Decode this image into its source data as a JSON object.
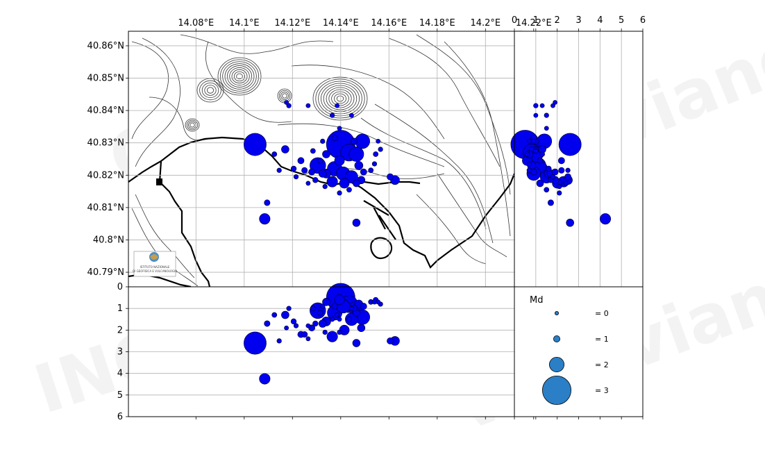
{
  "chart_data": [
    {
      "type": "scatter",
      "panel": "map",
      "xlabel": "",
      "ylabel": "",
      "xlim": [
        14.052,
        14.212
      ],
      "ylim": [
        40.7855,
        40.8645
      ],
      "x_ticks": [
        14.08,
        14.1,
        14.12,
        14.14,
        14.16,
        14.18,
        14.2,
        14.22
      ],
      "x_tick_labels": [
        "14.08°E",
        "14.1°E",
        "14.12°E",
        "14.14°E",
        "14.16°E",
        "14.18°E",
        "14.2°E",
        "14.22°E"
      ],
      "y_ticks": [
        40.79,
        40.8,
        40.81,
        40.82,
        40.83,
        40.84,
        40.85,
        40.86
      ],
      "y_tick_labels": [
        "40.79°N",
        "40.8°N",
        "40.81°N",
        "40.82°N",
        "40.83°N",
        "40.84°N",
        "40.85°N",
        "40.86°N"
      ],
      "grid": true,
      "marker_color": "#0000ee",
      "points": [
        {
          "lon": 14.14,
          "lat": 40.8295,
          "md": 3.0
        },
        {
          "lon": 14.1435,
          "lat": 40.827,
          "md": 2.2
        },
        {
          "lon": 14.1465,
          "lat": 40.8265,
          "md": 2.0
        },
        {
          "lon": 14.1305,
          "lat": 40.823,
          "md": 2.1
        },
        {
          "lon": 14.1375,
          "lat": 40.822,
          "md": 2.0
        },
        {
          "lon": 14.141,
          "lat": 40.8205,
          "md": 1.9
        },
        {
          "lon": 14.1445,
          "lat": 40.8195,
          "md": 1.8
        },
        {
          "lon": 14.1365,
          "lat": 40.818,
          "md": 1.6
        },
        {
          "lon": 14.134,
          "lat": 40.8205,
          "md": 1.4
        },
        {
          "lon": 14.1415,
          "lat": 40.8175,
          "md": 1.5
        },
        {
          "lon": 14.1325,
          "lat": 40.8205,
          "md": 1.2
        },
        {
          "lon": 14.128,
          "lat": 40.821,
          "md": 1.0
        },
        {
          "lon": 14.125,
          "lat": 40.8215,
          "md": 0.9
        },
        {
          "lon": 14.1235,
          "lat": 40.8245,
          "md": 1.0
        },
        {
          "lon": 14.1205,
          "lat": 40.822,
          "md": 0.8
        },
        {
          "lon": 14.134,
          "lat": 40.8265,
          "md": 1.2
        },
        {
          "lon": 14.1395,
          "lat": 40.8245,
          "md": 1.5
        },
        {
          "lon": 14.1475,
          "lat": 40.823,
          "md": 1.3
        },
        {
          "lon": 14.1495,
          "lat": 40.821,
          "md": 1.0
        },
        {
          "lon": 14.1525,
          "lat": 40.8215,
          "md": 0.7
        },
        {
          "lon": 14.154,
          "lat": 40.8235,
          "md": 0.6
        },
        {
          "lon": 14.1545,
          "lat": 40.8265,
          "md": 0.7
        },
        {
          "lon": 14.1565,
          "lat": 40.828,
          "md": 0.6
        },
        {
          "lon": 14.1455,
          "lat": 40.8305,
          "md": 1.0
        },
        {
          "lon": 14.149,
          "lat": 40.8305,
          "md": 2.0
        },
        {
          "lon": 14.1375,
          "lat": 40.8315,
          "md": 0.9
        },
        {
          "lon": 14.1325,
          "lat": 40.8305,
          "md": 0.6
        },
        {
          "lon": 14.1285,
          "lat": 40.8275,
          "md": 0.7
        },
        {
          "lon": 14.1315,
          "lat": 40.8245,
          "md": 0.8
        },
        {
          "lon": 14.1145,
          "lat": 40.8215,
          "md": 0.6
        },
        {
          "lon": 14.117,
          "lat": 40.828,
          "md": 1.2
        },
        {
          "lon": 14.1125,
          "lat": 40.8265,
          "md": 0.7
        },
        {
          "lon": 14.1295,
          "lat": 40.8185,
          "md": 0.8
        },
        {
          "lon": 14.1335,
          "lat": 40.8165,
          "md": 0.6
        },
        {
          "lon": 14.1395,
          "lat": 40.8145,
          "md": 0.6
        },
        {
          "lon": 14.1435,
          "lat": 40.8155,
          "md": 0.7
        },
        {
          "lon": 14.1465,
          "lat": 40.8175,
          "md": 1.1
        },
        {
          "lon": 14.1365,
          "lat": 40.8385,
          "md": 0.6
        },
        {
          "lon": 14.1385,
          "lat": 40.8415,
          "md": 0.5
        },
        {
          "lon": 14.1445,
          "lat": 40.8385,
          "md": 0.5
        },
        {
          "lon": 14.1265,
          "lat": 40.8415,
          "md": 0.5
        },
        {
          "lon": 14.1185,
          "lat": 40.8415,
          "md": 0.6
        },
        {
          "lon": 14.1175,
          "lat": 40.8425,
          "md": 0.5
        },
        {
          "lon": 14.1625,
          "lat": 40.8185,
          "md": 1.4
        },
        {
          "lon": 14.1605,
          "lat": 40.8195,
          "md": 1.0
        },
        {
          "lon": 14.1045,
          "lat": 40.8295,
          "md": 2.6
        },
        {
          "lon": 14.1095,
          "lat": 40.8115,
          "md": 0.9
        },
        {
          "lon": 14.1085,
          "lat": 40.8065,
          "md": 1.6
        },
        {
          "lon": 14.1465,
          "lat": 40.8053,
          "md": 1.2
        },
        {
          "lon": 14.1265,
          "lat": 40.8175,
          "md": 0.5
        },
        {
          "lon": 14.1395,
          "lat": 40.8345,
          "md": 0.5
        },
        {
          "lon": 14.1555,
          "lat": 40.8305,
          "md": 0.5
        },
        {
          "lon": 14.1215,
          "lat": 40.8195,
          "md": 0.6
        },
        {
          "lon": 14.1485,
          "lat": 40.8185,
          "md": 1.2
        }
      ]
    },
    {
      "type": "scatter",
      "panel": "depth-right",
      "x_ticks": [
        0,
        1,
        2,
        3,
        4,
        5,
        6
      ],
      "x_tick_labels": [
        "0",
        "1",
        "2",
        "3",
        "4",
        "5",
        "6"
      ],
      "xlim": [
        0,
        6
      ],
      "grid": "vertical",
      "marker_color": "#0000ee"
    },
    {
      "type": "scatter",
      "panel": "depth-bottom",
      "y_ticks": [
        0,
        1,
        2,
        3,
        4,
        5,
        6
      ],
      "y_tick_labels": [
        "0",
        "1",
        "2",
        "3",
        "4",
        "5",
        "6"
      ],
      "ylim": [
        0,
        6
      ],
      "grid": "horizontal",
      "marker_color": "#0000ee",
      "depths": [
        0.5,
        0.8,
        1.0,
        1.1,
        1.2,
        0.9,
        1.5,
        2.3,
        1.6,
        2.0,
        1.7,
        1.9,
        2.2,
        2.2,
        1.6,
        0.7,
        0.6,
        0.8,
        0.9,
        0.7,
        0.7,
        0.6,
        0.8,
        1.0,
        1.4,
        0.9,
        0.9,
        1.0,
        1.2,
        2.5,
        1.3,
        1.3,
        1.7,
        2.1,
        2.1,
        1.5,
        1.2,
        1.5,
        1.3,
        1.0,
        1.8,
        1.0,
        1.9,
        2.5,
        2.5,
        2.6,
        1.7,
        4.25,
        2.6,
        2.4,
        1.5,
        0.7,
        1.8,
        1.9
      ]
    },
    {
      "type": "scatter",
      "panel": "legend",
      "legend_title": "Md",
      "legend_entries": [
        {
          "md": 0,
          "label": "= 0"
        },
        {
          "md": 1,
          "label": "= 1"
        },
        {
          "md": 2,
          "label": "= 2"
        },
        {
          "md": 3,
          "label": "= 3"
        }
      ],
      "legend_color": "#2a7fc6"
    }
  ],
  "logo": {
    "line1": "ISTITUTO NAZIONALE",
    "line2": "DI GEOFISICA E VULCANOLOGIA"
  },
  "watermark_text": "Osservatorio Vesuviano"
}
